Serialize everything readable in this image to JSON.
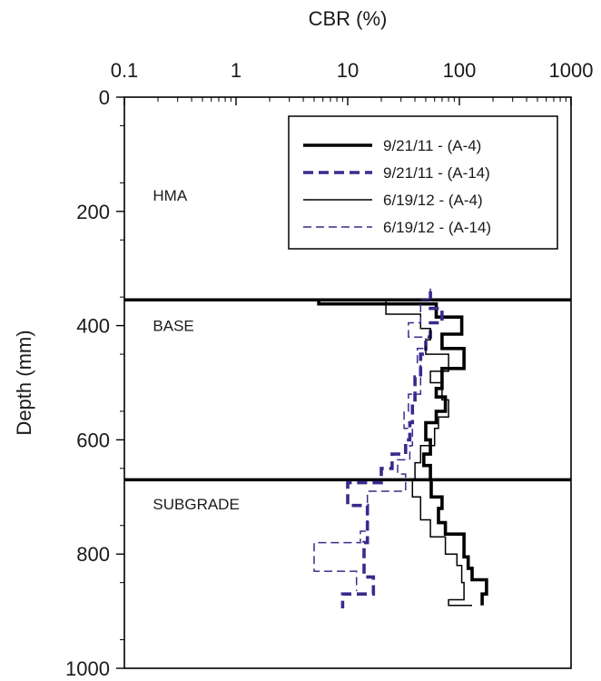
{
  "chart_data": {
    "type": "line",
    "xlabel": "CBR (%)",
    "ylabel": "Depth (mm)",
    "x_scale": "log",
    "xlim": [
      0.1,
      1000
    ],
    "ylim": [
      0,
      1000
    ],
    "y_inverted": true,
    "x_ticks": [
      "0.1",
      "1",
      "10",
      "100",
      "1000"
    ],
    "x_tick_values": [
      0.1,
      1,
      10,
      100,
      1000
    ],
    "y_ticks": [
      "0",
      "200",
      "400",
      "600",
      "800",
      "1000"
    ],
    "y_tick_values": [
      0,
      200,
      400,
      600,
      800,
      1000
    ],
    "grid": false,
    "legend_position": "top-right",
    "layer_boundaries": [
      355,
      670
    ],
    "layer_labels": [
      {
        "text": "HMA",
        "depth": 172,
        "cbr": 0.18
      },
      {
        "text": "BASE",
        "depth": 400,
        "cbr": 0.18
      },
      {
        "text": "SUBGRADE",
        "depth": 712,
        "cbr": 0.18
      }
    ],
    "series": [
      {
        "name": "9/21/11 - (A-4)",
        "color": "#000000",
        "dash": "solid",
        "weight": "thick",
        "points": [
          [
            5.5,
            355
          ],
          [
            5.5,
            362
          ],
          [
            62,
            362
          ],
          [
            62,
            385
          ],
          [
            105,
            385
          ],
          [
            105,
            415
          ],
          [
            70,
            415
          ],
          [
            70,
            440
          ],
          [
            110,
            440
          ],
          [
            110,
            475
          ],
          [
            70,
            475
          ],
          [
            70,
            510
          ],
          [
            62,
            510
          ],
          [
            62,
            525
          ],
          [
            75,
            525
          ],
          [
            75,
            550
          ],
          [
            62,
            550
          ],
          [
            62,
            570
          ],
          [
            50,
            570
          ],
          [
            50,
            600
          ],
          [
            55,
            600
          ],
          [
            55,
            625
          ],
          [
            48,
            625
          ],
          [
            48,
            645
          ],
          [
            55,
            645
          ],
          [
            55,
            670
          ],
          [
            56,
            670
          ],
          [
            56,
            700
          ],
          [
            70,
            700
          ],
          [
            70,
            720
          ],
          [
            65,
            720
          ],
          [
            65,
            745
          ],
          [
            75,
            745
          ],
          [
            75,
            765
          ],
          [
            110,
            765
          ],
          [
            110,
            805
          ],
          [
            120,
            805
          ],
          [
            120,
            825
          ],
          [
            130,
            825
          ],
          [
            130,
            845
          ],
          [
            175,
            845
          ],
          [
            175,
            870
          ],
          [
            160,
            870
          ],
          [
            160,
            890
          ]
        ]
      },
      {
        "name": "9/21/11 - (A-14)",
        "color": "#3b2a8c",
        "dash": "dashed",
        "weight": "thick",
        "points": [
          [
            55,
            340
          ],
          [
            55,
            355
          ],
          [
            55,
            370
          ],
          [
            70,
            370
          ],
          [
            70,
            395
          ],
          [
            55,
            395
          ],
          [
            55,
            420
          ],
          [
            50,
            420
          ],
          [
            50,
            450
          ],
          [
            45,
            450
          ],
          [
            45,
            490
          ],
          [
            40,
            490
          ],
          [
            40,
            530
          ],
          [
            38,
            530
          ],
          [
            38,
            570
          ],
          [
            36,
            570
          ],
          [
            36,
            600
          ],
          [
            33,
            600
          ],
          [
            33,
            625
          ],
          [
            25,
            625
          ],
          [
            25,
            650
          ],
          [
            20,
            650
          ],
          [
            20,
            670
          ],
          [
            20,
            675
          ],
          [
            10,
            675
          ],
          [
            10,
            705
          ],
          [
            10,
            715
          ],
          [
            15,
            715
          ],
          [
            15,
            780
          ],
          [
            14,
            780
          ],
          [
            14,
            840
          ],
          [
            17,
            840
          ],
          [
            17,
            870
          ],
          [
            9,
            870
          ],
          [
            9,
            895
          ]
        ]
      },
      {
        "name": "6/19/12 - (A-4)",
        "color": "#000000",
        "dash": "solid",
        "weight": "thin",
        "points": [
          [
            4.8,
            355
          ],
          [
            65,
            355
          ],
          [
            22,
            355
          ],
          [
            22,
            380
          ],
          [
            45,
            380
          ],
          [
            45,
            405
          ],
          [
            55,
            405
          ],
          [
            55,
            425
          ],
          [
            50,
            425
          ],
          [
            50,
            450
          ],
          [
            80,
            450
          ],
          [
            80,
            480
          ],
          [
            55,
            480
          ],
          [
            55,
            500
          ],
          [
            70,
            500
          ],
          [
            70,
            530
          ],
          [
            80,
            530
          ],
          [
            80,
            560
          ],
          [
            65,
            560
          ],
          [
            65,
            580
          ],
          [
            60,
            580
          ],
          [
            60,
            610
          ],
          [
            45,
            610
          ],
          [
            45,
            640
          ],
          [
            40,
            640
          ],
          [
            40,
            670
          ],
          [
            38,
            670
          ],
          [
            38,
            700
          ],
          [
            45,
            700
          ],
          [
            45,
            740
          ],
          [
            55,
            740
          ],
          [
            55,
            770
          ],
          [
            75,
            770
          ],
          [
            75,
            800
          ],
          [
            95,
            800
          ],
          [
            95,
            820
          ],
          [
            105,
            820
          ],
          [
            105,
            850
          ],
          [
            110,
            850
          ],
          [
            110,
            880
          ],
          [
            80,
            880
          ],
          [
            80,
            890
          ],
          [
            130,
            890
          ]
        ]
      },
      {
        "name": "6/19/12 - (A-14)",
        "color": "#3b2a8c",
        "dash": "dashed",
        "weight": "thin",
        "points": [
          [
            55,
            335
          ],
          [
            55,
            355
          ],
          [
            45,
            355
          ],
          [
            45,
            395
          ],
          [
            35,
            395
          ],
          [
            35,
            420
          ],
          [
            50,
            420
          ],
          [
            50,
            440
          ],
          [
            42,
            440
          ],
          [
            42,
            470
          ],
          [
            45,
            470
          ],
          [
            45,
            520
          ],
          [
            35,
            520
          ],
          [
            35,
            550
          ],
          [
            32,
            550
          ],
          [
            32,
            580
          ],
          [
            38,
            580
          ],
          [
            38,
            610
          ],
          [
            36,
            610
          ],
          [
            36,
            635
          ],
          [
            28,
            635
          ],
          [
            28,
            660
          ],
          [
            33,
            660
          ],
          [
            33,
            690
          ],
          [
            15,
            690
          ],
          [
            15,
            760
          ],
          [
            13,
            760
          ],
          [
            13,
            780
          ],
          [
            5,
            780
          ],
          [
            5,
            830
          ],
          [
            12,
            830
          ],
          [
            12,
            865
          ]
        ]
      }
    ]
  }
}
